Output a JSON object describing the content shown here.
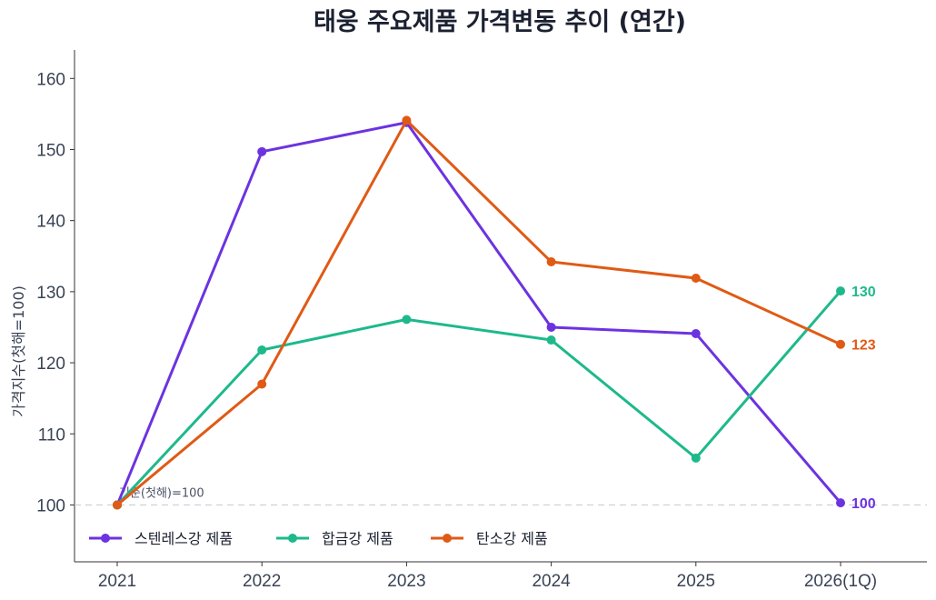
{
  "chart_data": {
    "type": "line",
    "title": "태웅 주요제품 가격변동 추이 (연간)",
    "xlabel": "",
    "ylabel": "가격지수(첫해=100)",
    "categories": [
      "2021",
      "2022",
      "2023",
      "2024",
      "2025",
      "2026(1Q)"
    ],
    "ylim": [
      92,
      164
    ],
    "yticks": [
      100,
      110,
      120,
      130,
      140,
      150,
      160
    ],
    "grid": false,
    "legend_position": "bottom-left",
    "series": [
      {
        "name": "스텐레스강 제품",
        "color": "#6c33e0",
        "values": [
          100,
          149.7,
          153.8,
          125,
          124.1,
          100.3
        ],
        "end_label": "100"
      },
      {
        "name": "합금강 제품",
        "color": "#1db98b",
        "values": [
          100,
          121.8,
          126.1,
          123.2,
          106.6,
          130.1
        ],
        "end_label": "130"
      },
      {
        "name": "탄소강 제품",
        "color": "#e05a15",
        "values": [
          100,
          117,
          154.1,
          134.2,
          131.9,
          122.6
        ],
        "end_label": "123"
      }
    ],
    "reference_line": {
      "value": 100,
      "label": "기준(첫해)=100",
      "color": "#c9ced6"
    }
  }
}
